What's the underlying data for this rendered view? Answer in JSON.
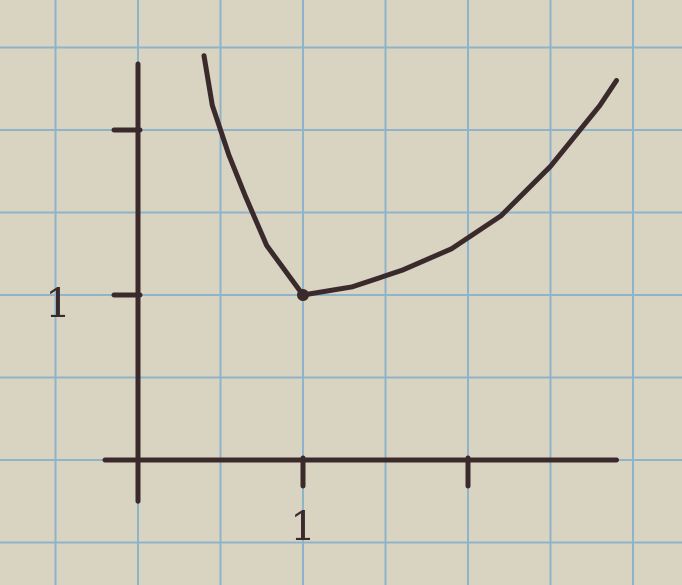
{
  "colors": {
    "paper": "#d9d3c2",
    "grid": "#8fb4c9",
    "ink": "#3b2a2c"
  },
  "chart_data": {
    "type": "line",
    "title": "",
    "xlabel": "",
    "ylabel": "",
    "xlim": [
      -0.2,
      2.9
    ],
    "ylim": [
      -0.05,
      2.45
    ],
    "grid": true,
    "x_ticks": [
      {
        "value": 1,
        "label": "1"
      },
      {
        "value": 2,
        "label": ""
      }
    ],
    "y_ticks": [
      {
        "value": 1,
        "label": "1"
      },
      {
        "value": 2,
        "label": ""
      }
    ],
    "series": [
      {
        "name": "",
        "points": [
          [
            0.4,
            2.45
          ],
          [
            0.45,
            2.15
          ],
          [
            0.55,
            1.85
          ],
          [
            0.65,
            1.6
          ],
          [
            0.78,
            1.3
          ],
          [
            1.0,
            1.0
          ],
          [
            1.3,
            1.05
          ],
          [
            1.6,
            1.15
          ],
          [
            1.9,
            1.28
          ],
          [
            2.2,
            1.48
          ],
          [
            2.5,
            1.78
          ],
          [
            2.8,
            2.15
          ],
          [
            2.9,
            2.3
          ]
        ],
        "marked_point": [
          1.0,
          1.0
        ]
      }
    ]
  }
}
